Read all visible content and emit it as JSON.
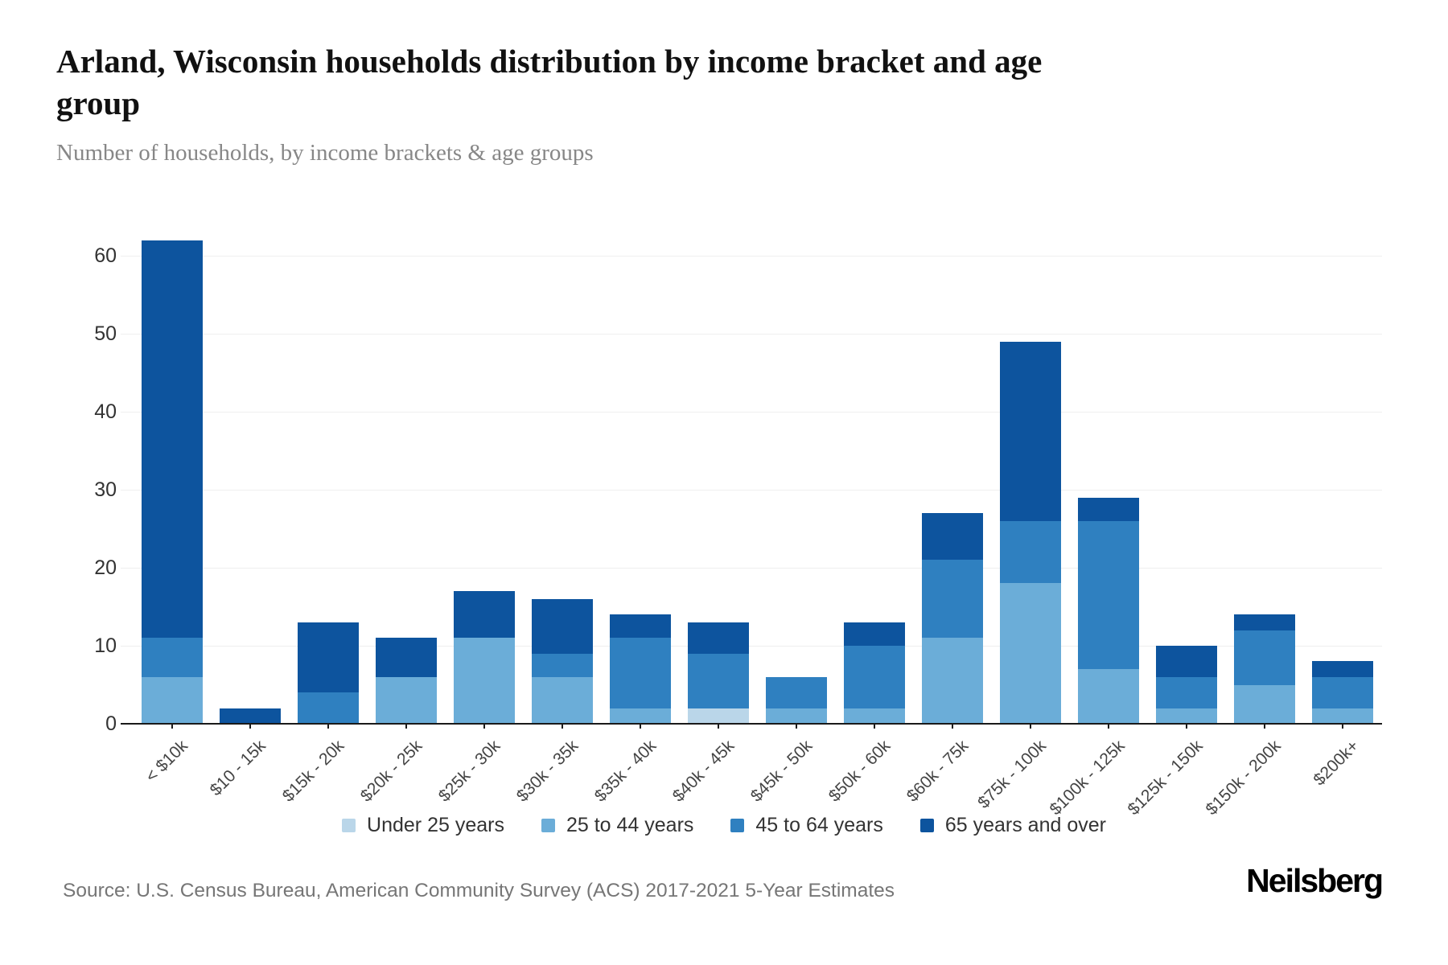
{
  "header": {
    "title": "Arland, Wisconsin households distribution by income bracket and age group",
    "subtitle": "Number of households, by income brackets & age groups"
  },
  "chart_data": {
    "type": "bar",
    "stacked": true,
    "title": "Arland, Wisconsin households distribution by income bracket and age group",
    "subtitle": "Number of households, by income brackets & age groups",
    "categories": [
      "< $10k",
      "$10 - 15k",
      "$15k - 20k",
      "$20k - 25k",
      "$25k - 30k",
      "$30k - 35k",
      "$35k - 40k",
      "$40k - 45k",
      "$45k - 50k",
      "$50k - 60k",
      "$60k - 75k",
      "$75k - 100k",
      "$100k - 125k",
      "$125k - 150k",
      "$150k - 200k",
      "$200k+"
    ],
    "series": [
      {
        "name": "Under 25 years",
        "color": "#bad6e9",
        "values": [
          0,
          0,
          0,
          0,
          0,
          0,
          0,
          2,
          0,
          0,
          0,
          0,
          0,
          0,
          0,
          0
        ]
      },
      {
        "name": "25 to 44 years",
        "color": "#6badd8",
        "values": [
          6,
          0,
          0,
          6,
          11,
          6,
          2,
          0,
          2,
          2,
          11,
          18,
          7,
          2,
          5,
          2
        ]
      },
      {
        "name": "45 to 64 years",
        "color": "#2f80c0",
        "values": [
          5,
          0,
          4,
          0,
          0,
          3,
          9,
          7,
          4,
          8,
          10,
          8,
          19,
          4,
          7,
          4
        ]
      },
      {
        "name": "65 years and over",
        "color": "#0d549e",
        "values": [
          51,
          2,
          9,
          5,
          6,
          7,
          3,
          4,
          0,
          3,
          6,
          23,
          3,
          4,
          2,
          2
        ]
      }
    ],
    "totals": [
      62,
      2,
      13,
      11,
      17,
      16,
      14,
      13,
      6,
      13,
      27,
      49,
      29,
      10,
      14,
      8
    ],
    "y_ticks": [
      0,
      10,
      20,
      30,
      40,
      50,
      60
    ],
    "ylim": [
      0,
      66
    ],
    "xlabel": "",
    "ylabel": "",
    "grid": true,
    "legend_position": "bottom"
  },
  "footer": {
    "source": "Source: U.S. Census Bureau, American Community Survey (ACS) 2017-2021 5-Year Estimates",
    "logo": "Neilsberg"
  }
}
